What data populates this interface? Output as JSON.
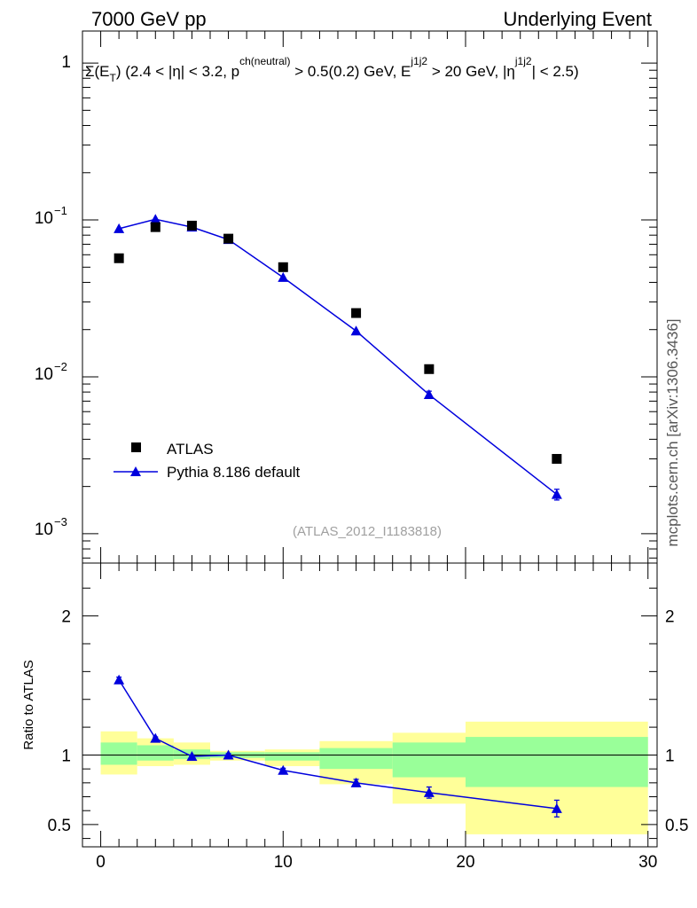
{
  "header": {
    "left": "7000 GeV pp",
    "right": "Underlying Event",
    "side_label": "mcplots.cern.ch [arXiv:1306.3436]",
    "watermark": "(ATLAS_2012_I1183818)"
  },
  "chart_data": [
    {
      "type": "scatter",
      "panel": "main",
      "title": "Σ(E_T) (2.4 < |η| < 3.2, p_T^ch(neutral) > 0.5(0.2) GeV, E_T^j1j2 > 20 GeV, |η^j1j2| < 2.5)",
      "title_parts": {
        "sigma": "Σ(E",
        "sub_t": "T",
        "part1": ") (2.4 < |η| < 3.2, p",
        "sup_ch": "ch(neutral)",
        "part2": " > 0.5(0.2) GeV, E",
        "sup_j": "j1j2",
        "part3": " > 20 GeV, |η",
        "sup_j2": "j1j2",
        "part4": "| < 2.5)"
      },
      "yscale": "log",
      "xlim": [
        -1,
        30.5
      ],
      "ylim": [
        0.00065,
        1.6
      ],
      "ytick_labels": {
        "t1": "1",
        "t2": "10",
        "t2e": "−1",
        "t3": "10",
        "t3e": "−2",
        "t4": "10",
        "t4e": "−3"
      },
      "legend_position": "bottom-left",
      "series": [
        {
          "name": "ATLAS",
          "style": "marker-square",
          "color": "#000000",
          "x": [
            1,
            3,
            5,
            7,
            10,
            14,
            18,
            25
          ],
          "y": [
            0.057,
            0.09,
            0.092,
            0.076,
            0.05,
            0.0255,
            0.0112,
            0.003
          ]
        },
        {
          "name": "Pythia 8.186 default",
          "style": "line-triangle",
          "color": "#0000dd",
          "x": [
            1,
            3,
            5,
            7,
            10,
            14,
            18,
            25
          ],
          "y": [
            0.088,
            0.101,
            0.09,
            0.075,
            0.043,
            0.0196,
            0.0077,
            0.00178
          ],
          "yerr": [
            0,
            0,
            0,
            0,
            0,
            0,
            0.0004,
            0.00014
          ]
        }
      ]
    },
    {
      "type": "line",
      "panel": "ratio",
      "ylabel": "Ratio to ATLAS",
      "xlim": [
        -1,
        30.5
      ],
      "ylim": [
        0.34,
        2.38
      ],
      "yticks": [
        0.5,
        1,
        2
      ],
      "ytick_labels": [
        "0.5",
        "1",
        "2"
      ],
      "xticks": [
        0,
        10,
        20,
        30
      ],
      "xtick_labels": [
        "0",
        "10",
        "20",
        "30"
      ],
      "reference_line": 1,
      "bands": [
        {
          "x0": 0,
          "x1": 2,
          "yellow": [
            0.86,
            1.17
          ],
          "green": [
            0.93,
            1.09
          ]
        },
        {
          "x0": 2,
          "x1": 4,
          "yellow": [
            0.92,
            1.12
          ],
          "green": [
            0.96,
            1.07
          ]
        },
        {
          "x0": 4,
          "x1": 6,
          "yellow": [
            0.93,
            1.09
          ],
          "green": [
            0.97,
            1.04
          ]
        },
        {
          "x0": 6,
          "x1": 9,
          "yellow": [
            0.96,
            1.03
          ],
          "green": [
            0.98,
            1.02
          ]
        },
        {
          "x0": 9,
          "x1": 12,
          "yellow": [
            0.92,
            1.04
          ],
          "green": [
            0.96,
            1.02
          ]
        },
        {
          "x0": 12,
          "x1": 16,
          "yellow": [
            0.79,
            1.1
          ],
          "green": [
            0.9,
            1.05
          ]
        },
        {
          "x0": 16,
          "x1": 20,
          "yellow": [
            0.65,
            1.16
          ],
          "green": [
            0.84,
            1.09
          ]
        },
        {
          "x0": 20,
          "x1": 30,
          "yellow": [
            0.43,
            1.24
          ],
          "green": [
            0.77,
            1.13
          ]
        }
      ],
      "band_colors": {
        "yellow": "#ffff99",
        "green": "#99ff99"
      },
      "series": [
        {
          "name": "Pythia 8.186 default",
          "color": "#0000dd",
          "x": [
            1,
            3,
            5,
            7,
            10,
            14,
            18,
            25
          ],
          "y": [
            1.54,
            1.12,
            0.99,
            1.0,
            0.89,
            0.8,
            0.73,
            0.615
          ],
          "yerr": [
            0.02,
            0.01,
            0.01,
            0.01,
            0.015,
            0.025,
            0.04,
            0.06
          ]
        }
      ]
    }
  ]
}
